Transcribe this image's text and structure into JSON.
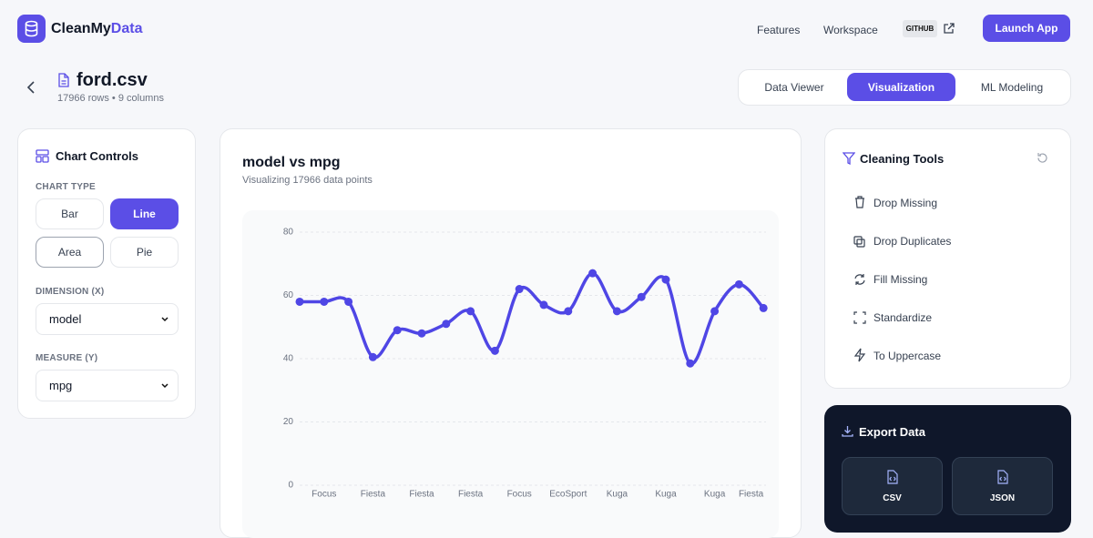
{
  "header": {
    "brand_prefix": "CleanMy",
    "brand_suffix": "Data",
    "nav": [
      "Features",
      "Workspace"
    ],
    "github": "GITHUB",
    "launch": "Launch App"
  },
  "file": {
    "name": "ford.csv",
    "meta": "17966 rows • 9 columns"
  },
  "tabs": [
    "Data Viewer",
    "Visualization",
    "ML Modeling"
  ],
  "controls": {
    "title": "Chart Controls",
    "chart_type_label": "CHART TYPE",
    "chart_types": [
      "Bar",
      "Line",
      "Area",
      "Pie"
    ],
    "dimension_label": "DIMENSION (X)",
    "dimension": "model",
    "measure_label": "MEASURE (Y)",
    "measure": "mpg"
  },
  "chart_data": {
    "type": "line",
    "title": "model vs mpg",
    "subtitle": "Visualizing 17966 data points",
    "categories": [
      null,
      "Focus",
      null,
      "Fiesta",
      null,
      "Fiesta",
      null,
      "Fiesta",
      null,
      "Focus",
      null,
      "EcoSport",
      null,
      "Kuga",
      null,
      "Kuga",
      null,
      "Kuga",
      null,
      "Fiesta"
    ],
    "values": [
      58,
      58,
      58,
      40.5,
      49,
      48,
      51,
      55,
      42.5,
      62,
      57,
      55,
      67,
      55,
      59.5,
      65,
      38.5,
      55,
      63.5,
      56
    ],
    "color": "#4f46e5",
    "ylim": [
      0,
      80
    ],
    "yticks": [
      0,
      20,
      40,
      60,
      80
    ],
    "grid": true
  },
  "cleaning": {
    "title": "Cleaning Tools",
    "tools": [
      "Drop Missing",
      "Drop Duplicates",
      "Fill Missing",
      "Standardize",
      "To Uppercase"
    ]
  },
  "export": {
    "title": "Export Data",
    "formats": [
      "CSV",
      "JSON"
    ]
  }
}
